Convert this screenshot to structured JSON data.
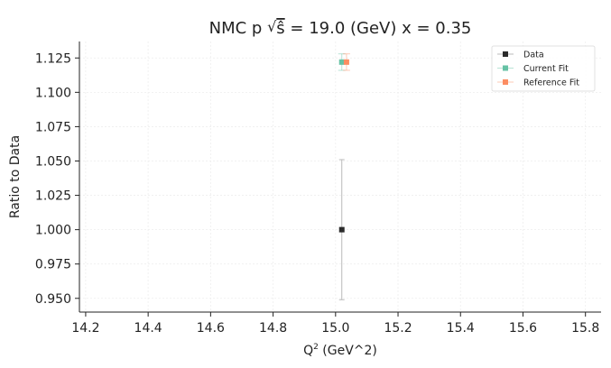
{
  "chart_data": {
    "type": "scatter",
    "title": {
      "prefix": "NMC p ",
      "sqrt_symbol": "√",
      "s_hat": "ŝ",
      "suffix": " = 19.0 (GeV) x = 0.35"
    },
    "xlabel": {
      "base": "Q",
      "sup": "2",
      "rest": " (GeV^2)"
    },
    "ylabel": "Ratio to Data",
    "xlim": [
      14.18,
      15.85
    ],
    "ylim": [
      0.94,
      1.137
    ],
    "xticks": [
      14.2,
      14.4,
      14.6,
      14.8,
      15.0,
      15.2,
      15.4,
      15.6,
      15.8
    ],
    "xtick_labels": [
      "14.2",
      "14.4",
      "14.6",
      "14.8",
      "15.0",
      "15.2",
      "15.4",
      "15.6",
      "15.8"
    ],
    "yticks": [
      0.95,
      0.975,
      1.0,
      1.025,
      1.05,
      1.075,
      1.1,
      1.125
    ],
    "ytick_labels": [
      "0.950",
      "0.975",
      "1.000",
      "1.025",
      "1.050",
      "1.075",
      "1.100",
      "1.125"
    ],
    "grid": true,
    "legend_position": "top-right",
    "series": [
      {
        "name": "Data",
        "color": "#2b2b2b",
        "marker": "square",
        "points": [
          {
            "x": 15.02,
            "y": 1.0,
            "yerr": 0.051
          }
        ]
      },
      {
        "name": "Current Fit",
        "color": "#66c2a5",
        "marker": "square",
        "points": [
          {
            "x": 15.02,
            "y": 1.122,
            "yerr": 0.006
          }
        ]
      },
      {
        "name": "Reference Fit",
        "color": "#fc8d62",
        "marker": "square",
        "points": [
          {
            "x": 15.035,
            "y": 1.122,
            "yerr": 0.006
          }
        ]
      }
    ]
  }
}
